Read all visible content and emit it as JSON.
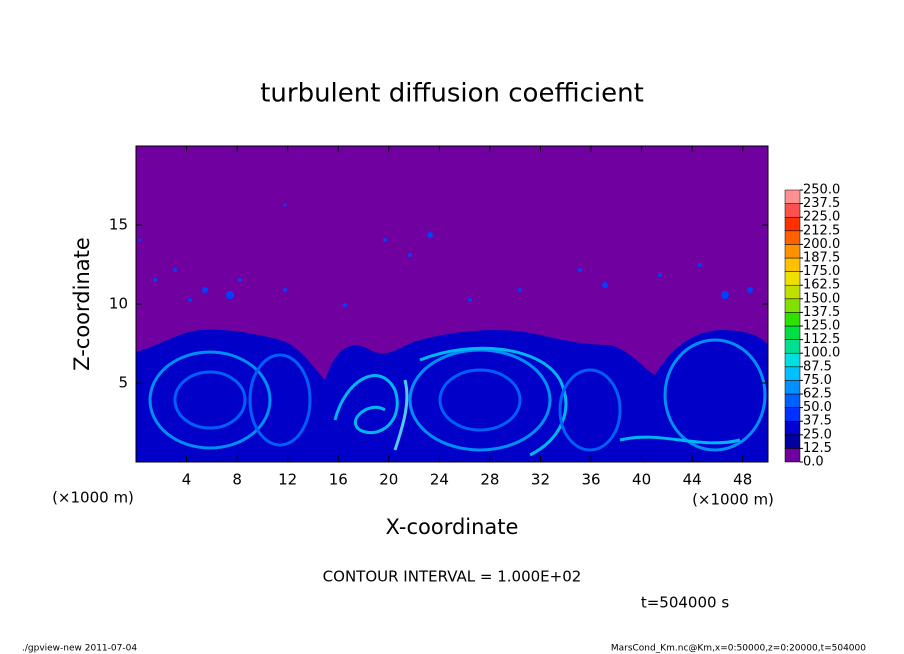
{
  "chart_data": {
    "type": "contour",
    "title": "turbulent diffusion coefficient",
    "xlabel": "X-coordinate",
    "ylabel": "Z-coordinate",
    "axis_unit": "(×1000 m)",
    "xlim": [
      0,
      50
    ],
    "ylim": [
      0,
      20
    ],
    "xticks": [
      4,
      8,
      12,
      16,
      20,
      24,
      28,
      32,
      36,
      40,
      44,
      48
    ],
    "yticks": [
      5,
      10,
      15
    ],
    "contour_interval": "CONTOUR INTERVAL = 1.000E+02",
    "time_label": "t=504000 s",
    "footer_left": "./gpview-new  2011-07-04",
    "footer_right": "MarsCond_Km.nc@Km,x=0:50000,z=0:20000,t=504000",
    "colorbar": {
      "clim": [
        0,
        250
      ],
      "ticks": [
        {
          "value": 0,
          "label": "0.0"
        },
        {
          "value": 12.5,
          "label": "12.5"
        },
        {
          "value": 25,
          "label": "25.0"
        },
        {
          "value": 37.5,
          "label": "37.5"
        },
        {
          "value": 50,
          "label": "50.0"
        },
        {
          "value": 62.5,
          "label": "62.5"
        },
        {
          "value": 75,
          "label": "75.0"
        },
        {
          "value": 87.5,
          "label": "87.5"
        },
        {
          "value": 100,
          "label": "100.0"
        },
        {
          "value": 112.5,
          "label": "112.5"
        },
        {
          "value": 125,
          "label": "125.0"
        },
        {
          "value": 137.5,
          "label": "137.5"
        },
        {
          "value": 150,
          "label": "150.0"
        },
        {
          "value": 162.5,
          "label": "162.5"
        },
        {
          "value": 175,
          "label": "175.0"
        },
        {
          "value": 187.5,
          "label": "187.5"
        },
        {
          "value": 200,
          "label": "200.0"
        },
        {
          "value": 212.5,
          "label": "212.5"
        },
        {
          "value": 225,
          "label": "225.0"
        },
        {
          "value": 237.5,
          "label": "237.5"
        },
        {
          "value": 250,
          "label": "250.0"
        }
      ],
      "colors": [
        "#7000a0",
        "#0000a0",
        "#0000d0",
        "#0030ff",
        "#0060ff",
        "#0090ff",
        "#00c0ff",
        "#00e0e0",
        "#00e090",
        "#00e040",
        "#30e000",
        "#80e000",
        "#c0e000",
        "#f0e000",
        "#ffc000",
        "#ff9000",
        "#ff6000",
        "#ff3000",
        "#ff5050",
        "#ff9090"
      ]
    }
  }
}
